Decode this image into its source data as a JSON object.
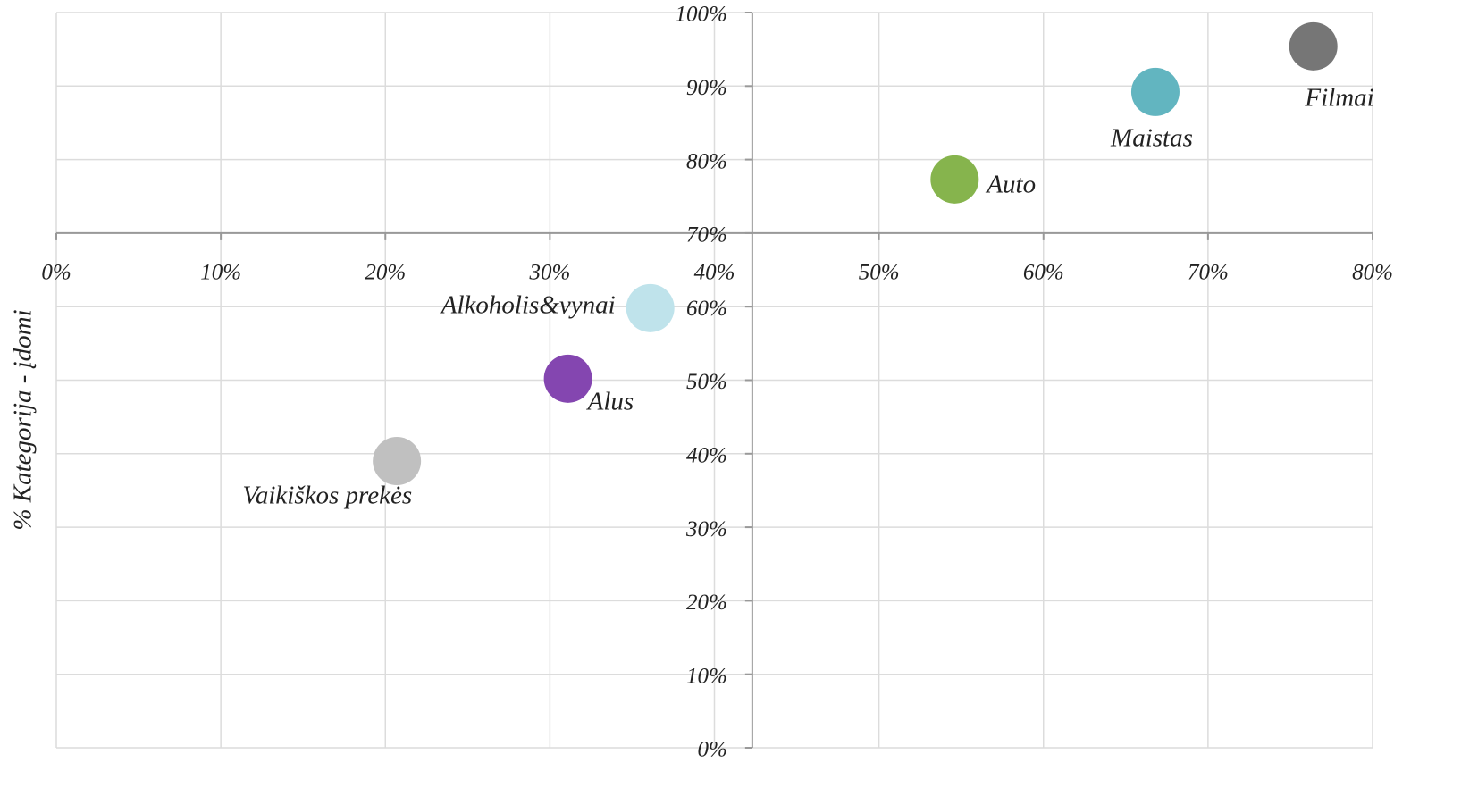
{
  "chart_data": {
    "type": "scatter",
    "y_label": "% Kategorija - įdomi",
    "xlim": [
      0,
      80
    ],
    "ylim": [
      0,
      100
    ],
    "xticks": [
      {
        "value": 0,
        "label": "0%"
      },
      {
        "value": 10,
        "label": "10%"
      },
      {
        "value": 20,
        "label": "20%"
      },
      {
        "value": 30,
        "label": "30%"
      },
      {
        "value": 40,
        "label": "40%"
      },
      {
        "value": 50,
        "label": "50%"
      },
      {
        "value": 60,
        "label": "60%"
      },
      {
        "value": 70,
        "label": "70%"
      },
      {
        "value": 80,
        "label": "80%"
      }
    ],
    "yticks": [
      {
        "value": 0,
        "label": "0%"
      },
      {
        "value": 10,
        "label": "10%"
      },
      {
        "value": 20,
        "label": "20%"
      },
      {
        "value": 30,
        "label": "30%"
      },
      {
        "value": 40,
        "label": "40%"
      },
      {
        "value": 50,
        "label": "50%"
      },
      {
        "value": 60,
        "label": "60%"
      },
      {
        "value": 70,
        "label": "70%"
      },
      {
        "value": 80,
        "label": "80%"
      },
      {
        "value": 90,
        "label": "90%"
      },
      {
        "value": 100,
        "label": "100%"
      }
    ],
    "x_axis_at": 70,
    "y_axis_at": 42.3,
    "grid": true,
    "series": [
      {
        "name": "Filmai",
        "color": "#767676",
        "x": [
          76.4
        ],
        "values": [
          95.4
        ]
      },
      {
        "name": "Maistas",
        "color": "#62b5c0",
        "x": [
          66.8
        ],
        "values": [
          89.2
        ]
      },
      {
        "name": "Auto",
        "color": "#86b44d",
        "x": [
          54.6
        ],
        "values": [
          77.3
        ]
      },
      {
        "name": "Alkoholis&vynai",
        "color": "#bfe3eb",
        "x": [
          36.1
        ],
        "values": [
          59.8
        ]
      },
      {
        "name": "Alus",
        "color": "#8446b0",
        "x": [
          31.1
        ],
        "values": [
          50.2
        ]
      },
      {
        "name": "Vaikiškos prekės",
        "color": "#c0c0c0",
        "x": [
          20.7
        ],
        "values": [
          39.0
        ]
      }
    ]
  }
}
